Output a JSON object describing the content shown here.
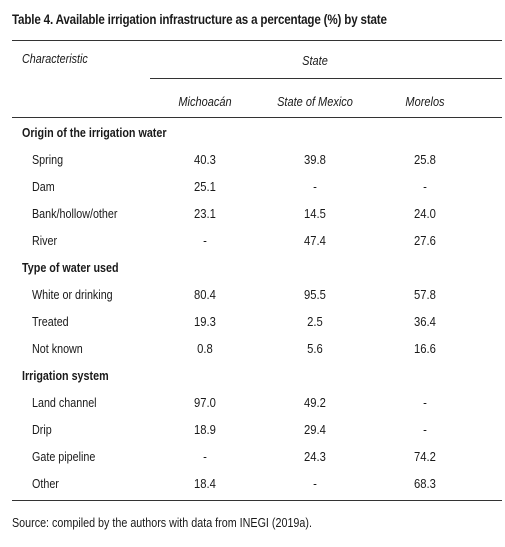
{
  "caption": "Table 4. Available irrigation infrastructure as a percentage (%) by state",
  "headers": {
    "characteristic": "Characteristic",
    "state": "State",
    "states": [
      "Michoacán",
      "State of Mexico",
      "Morelos"
    ]
  },
  "groups": [
    {
      "title": "Origin of the irrigation water",
      "rows": [
        {
          "label": "Spring",
          "values": [
            "40.3",
            "39.8",
            "25.8"
          ]
        },
        {
          "label": "Dam",
          "values": [
            "25.1",
            "-",
            "-"
          ]
        },
        {
          "label": "Bank/hollow/other",
          "values": [
            "23.1",
            "14.5",
            "24.0"
          ]
        },
        {
          "label": "River",
          "values": [
            "-",
            "47.4",
            "27.6"
          ]
        }
      ]
    },
    {
      "title": "Type of water used",
      "rows": [
        {
          "label": "White or drinking",
          "values": [
            "80.4",
            "95.5",
            "57.8"
          ]
        },
        {
          "label": "Treated",
          "values": [
            "19.3",
            "2.5",
            "36.4"
          ]
        },
        {
          "label": "Not known",
          "values": [
            "0.8",
            "5.6",
            "16.6"
          ]
        }
      ]
    },
    {
      "title": "Irrigation system",
      "rows": [
        {
          "label": "Land channel",
          "values": [
            "97.0",
            "49.2",
            "-"
          ]
        },
        {
          "label": "Drip",
          "values": [
            "18.9",
            "29.4",
            "-"
          ]
        },
        {
          "label": "Gate pipeline",
          "values": [
            "-",
            "24.3",
            "74.2"
          ]
        },
        {
          "label": "Other",
          "values": [
            "18.4",
            "-",
            "68.3"
          ]
        }
      ]
    }
  ],
  "source": "Source: compiled by the authors with data from INEGI (2019a)."
}
